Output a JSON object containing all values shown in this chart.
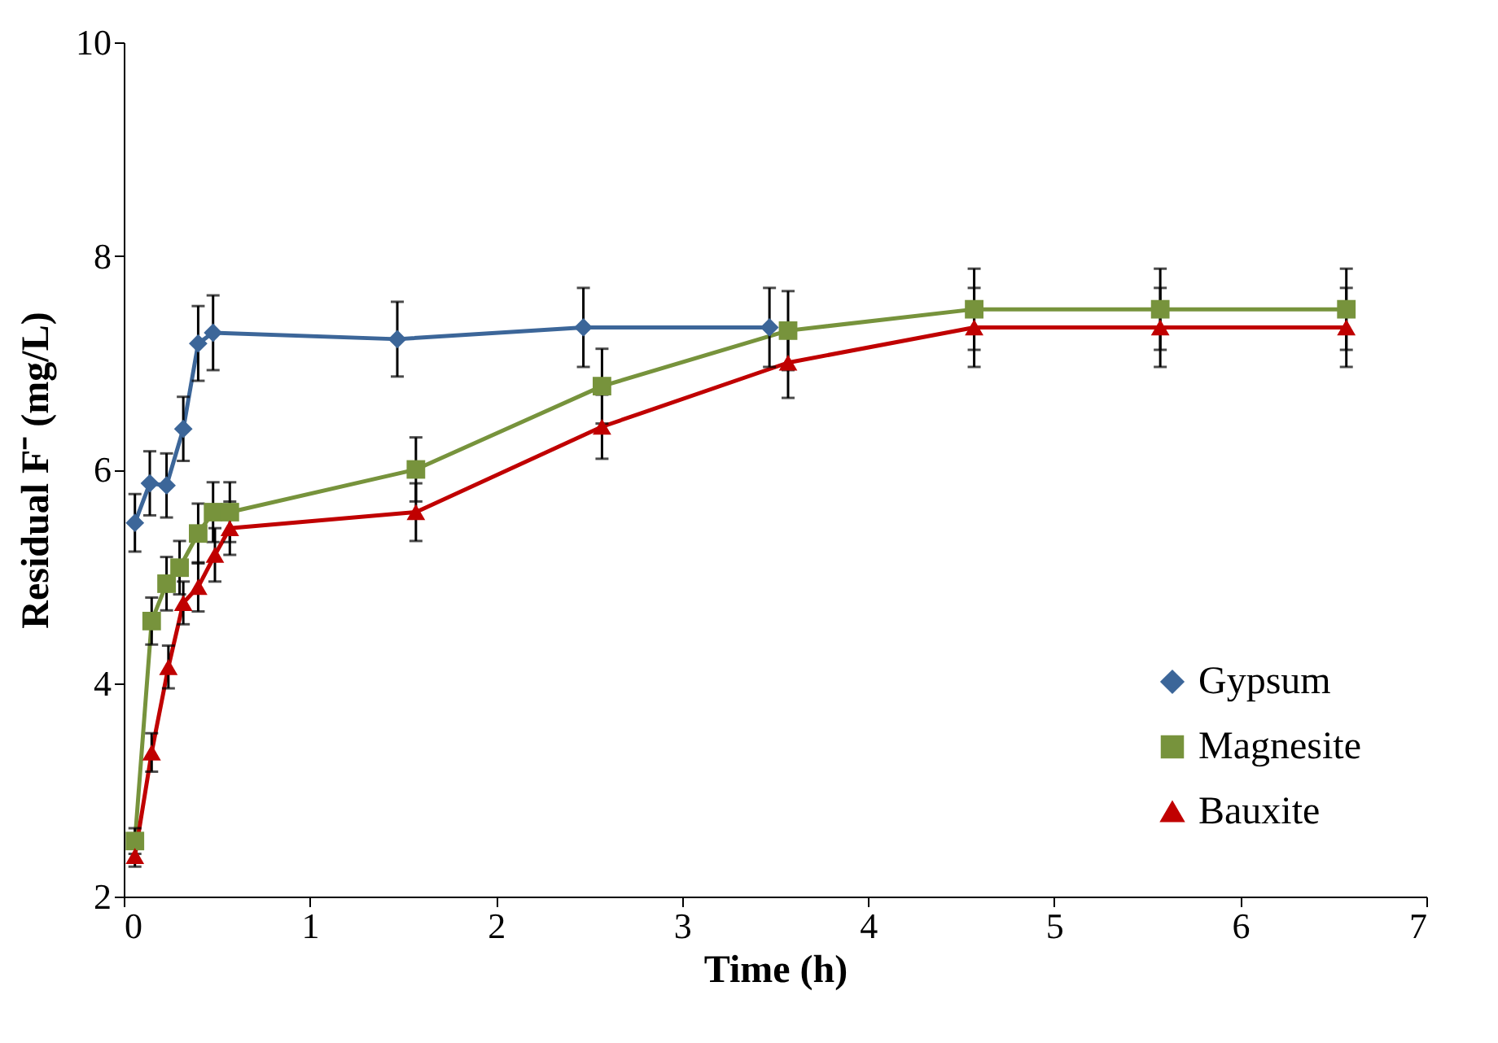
{
  "chart_data": {
    "type": "line",
    "xlabel": "Time (h)",
    "ylabel": "Residual F⁻ (mg/L)",
    "xlim": [
      0,
      7
    ],
    "xticks": [
      0,
      1,
      2,
      3,
      4,
      5,
      6,
      7
    ],
    "ylim": [
      2,
      10
    ],
    "yticks": [
      2,
      4,
      6,
      8,
      10
    ],
    "grid": false,
    "legend": "bottom right",
    "series": [
      {
        "name": "Gypsum",
        "color": "#3c6699",
        "marker": "diamond",
        "x": [
          0.06,
          0.14,
          0.23,
          0.32,
          0.4,
          0.48,
          1.47,
          2.47,
          3.47
        ],
        "values": [
          5.5,
          5.87,
          5.85,
          6.38,
          7.18,
          7.28,
          7.22,
          7.33,
          7.33
        ],
        "errors": [
          0.27,
          0.3,
          0.3,
          0.3,
          0.35,
          0.35,
          0.35,
          0.37,
          0.37
        ]
      },
      {
        "name": "Magnesite",
        "color": "#77933c",
        "marker": "square",
        "x": [
          0.06,
          0.15,
          0.23,
          0.3,
          0.4,
          0.48,
          0.57,
          1.57,
          2.57,
          3.57,
          4.57,
          5.57,
          6.57
        ],
        "values": [
          2.52,
          4.58,
          4.93,
          5.08,
          5.4,
          5.6,
          5.6,
          6.0,
          6.78,
          7.3,
          7.5,
          7.5,
          7.5
        ],
        "errors": [
          0.12,
          0.22,
          0.25,
          0.25,
          0.28,
          0.28,
          0.28,
          0.3,
          0.35,
          0.37,
          0.38,
          0.38,
          0.38
        ]
      },
      {
        "name": "Bauxite",
        "color": "#c00000",
        "marker": "triangle",
        "x": [
          0.06,
          0.15,
          0.24,
          0.32,
          0.4,
          0.49,
          0.57,
          1.57,
          2.57,
          3.57,
          4.57,
          5.57,
          6.57
        ],
        "values": [
          2.38,
          3.35,
          4.15,
          4.75,
          4.9,
          5.2,
          5.45,
          5.6,
          6.4,
          7.0,
          7.33,
          7.33,
          7.33
        ],
        "errors": [
          0.1,
          0.18,
          0.2,
          0.2,
          0.23,
          0.25,
          0.25,
          0.27,
          0.3,
          0.33,
          0.37,
          0.37,
          0.37
        ]
      }
    ]
  }
}
